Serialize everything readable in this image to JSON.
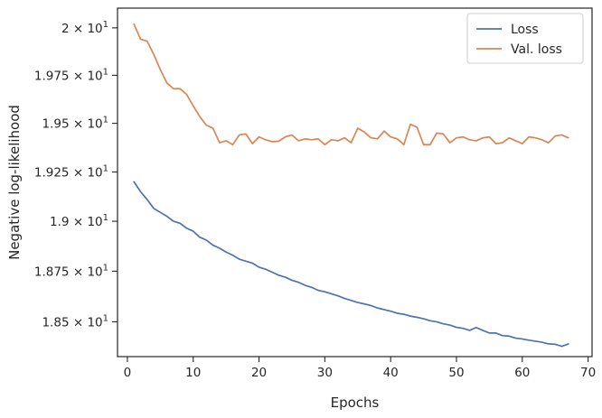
{
  "chart_data": {
    "type": "line",
    "title": "",
    "xlabel": "Epochs",
    "ylabel": "Negative log-likelihood",
    "xlim": [
      -1.5,
      70.6
    ],
    "ylim": [
      18.33,
      20.105
    ],
    "y_scale": "log",
    "grid": false,
    "legend_position": "top-right",
    "x_ticks": [
      {
        "value": 0,
        "label": "0"
      },
      {
        "value": 10,
        "label": "10"
      },
      {
        "value": 20,
        "label": "20"
      },
      {
        "value": 30,
        "label": "30"
      },
      {
        "value": 40,
        "label": "40"
      },
      {
        "value": 50,
        "label": "50"
      },
      {
        "value": 60,
        "label": "60"
      },
      {
        "value": 70,
        "label": "70"
      }
    ],
    "y_ticks": [
      {
        "value": 18.5,
        "mantissa": "1.85",
        "base": "10",
        "exponent": "1"
      },
      {
        "value": 18.75,
        "mantissa": "1.875",
        "base": "10",
        "exponent": "1"
      },
      {
        "value": 19.0,
        "mantissa": "1.9",
        "base": "10",
        "exponent": "1"
      },
      {
        "value": 19.25,
        "mantissa": "1.925",
        "base": "10",
        "exponent": "1"
      },
      {
        "value": 19.5,
        "mantissa": "1.95",
        "base": "10",
        "exponent": "1"
      },
      {
        "value": 19.75,
        "mantissa": "1.975",
        "base": "10",
        "exponent": "1"
      },
      {
        "value": 20.0,
        "mantissa": "2",
        "base": "10",
        "exponent": "1"
      }
    ],
    "x": [
      1,
      2,
      3,
      4,
      5,
      6,
      7,
      8,
      9,
      10,
      11,
      12,
      13,
      14,
      15,
      16,
      17,
      18,
      19,
      20,
      21,
      22,
      23,
      24,
      25,
      26,
      27,
      28,
      29,
      30,
      31,
      32,
      33,
      34,
      35,
      36,
      37,
      38,
      39,
      40,
      41,
      42,
      43,
      44,
      45,
      46,
      47,
      48,
      49,
      50,
      51,
      52,
      53,
      54,
      55,
      56,
      57,
      58,
      59,
      60,
      61,
      62,
      63,
      64,
      65,
      66,
      67
    ],
    "series": [
      {
        "name": "Loss",
        "color": "#4c72b0",
        "values": [
          19.2,
          19.15,
          19.11,
          19.065,
          19.045,
          19.025,
          19.0,
          18.99,
          18.965,
          18.95,
          18.92,
          18.905,
          18.88,
          18.865,
          18.845,
          18.83,
          18.81,
          18.8,
          18.79,
          18.77,
          18.76,
          18.745,
          18.73,
          18.72,
          18.705,
          18.695,
          18.68,
          18.67,
          18.655,
          18.648,
          18.638,
          18.628,
          18.615,
          18.605,
          18.595,
          18.588,
          18.58,
          18.568,
          18.56,
          18.552,
          18.542,
          18.537,
          18.528,
          18.522,
          18.515,
          18.505,
          18.5,
          18.49,
          18.484,
          18.473,
          18.468,
          18.458,
          18.472,
          18.458,
          18.445,
          18.445,
          18.432,
          18.43,
          18.42,
          18.416,
          18.41,
          18.405,
          18.4,
          18.392,
          18.39,
          18.38,
          18.392
        ]
      },
      {
        "name": "Val. loss",
        "color": "#dd8452",
        "values": [
          20.02,
          19.94,
          19.93,
          19.86,
          19.78,
          19.71,
          19.68,
          19.68,
          19.65,
          19.59,
          19.535,
          19.49,
          19.475,
          19.4,
          19.41,
          19.39,
          19.44,
          19.445,
          19.395,
          19.43,
          19.415,
          19.405,
          19.408,
          19.43,
          19.44,
          19.41,
          19.42,
          19.415,
          19.42,
          19.39,
          19.415,
          19.41,
          19.425,
          19.4,
          19.475,
          19.455,
          19.425,
          19.42,
          19.46,
          19.43,
          19.42,
          19.39,
          19.495,
          19.48,
          19.39,
          19.39,
          19.45,
          19.445,
          19.4,
          19.425,
          19.43,
          19.415,
          19.41,
          19.425,
          19.43,
          19.395,
          19.4,
          19.425,
          19.41,
          19.395,
          19.43,
          19.425,
          19.415,
          19.4,
          19.435,
          19.44,
          19.425
        ]
      }
    ]
  }
}
